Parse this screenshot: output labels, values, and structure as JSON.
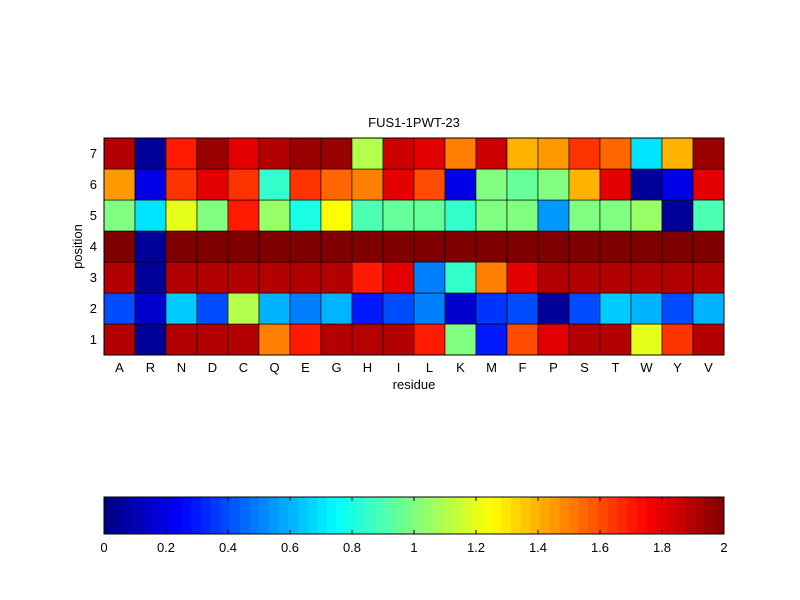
{
  "chart_data": {
    "type": "heatmap",
    "title": "FUS1-1PWT-23",
    "xlabel": "residue",
    "ylabel": "position",
    "x_categories": [
      "A",
      "R",
      "N",
      "D",
      "C",
      "Q",
      "E",
      "G",
      "H",
      "I",
      "L",
      "K",
      "M",
      "F",
      "P",
      "S",
      "T",
      "W",
      "Y",
      "V"
    ],
    "y_categories": [
      "1",
      "2",
      "3",
      "4",
      "5",
      "6",
      "7"
    ],
    "values": [
      [
        1.9,
        0.05,
        1.9,
        1.9,
        1.9,
        1.5,
        1.7,
        1.9,
        1.9,
        1.9,
        1.7,
        1.0,
        0.3,
        1.6,
        1.8,
        1.9,
        1.9,
        1.2,
        1.65,
        1.9
      ],
      [
        0.4,
        0.15,
        0.65,
        0.4,
        1.1,
        0.6,
        0.5,
        0.6,
        0.3,
        0.4,
        0.5,
        0.15,
        0.35,
        0.4,
        0.05,
        0.4,
        0.65,
        0.6,
        0.4,
        0.6
      ],
      [
        1.9,
        0.05,
        1.9,
        1.9,
        1.9,
        1.9,
        1.9,
        1.9,
        1.7,
        1.8,
        0.5,
        0.85,
        1.5,
        1.8,
        1.9,
        1.9,
        1.9,
        1.9,
        1.9,
        1.9
      ],
      [
        2.0,
        0.05,
        2.0,
        2.0,
        2.0,
        2.0,
        2.0,
        2.0,
        2.0,
        2.0,
        2.0,
        2.0,
        2.0,
        2.0,
        2.0,
        2.0,
        2.0,
        2.0,
        2.0,
        2.0
      ],
      [
        1.0,
        0.7,
        1.2,
        1.0,
        1.7,
        1.05,
        0.8,
        1.25,
        0.9,
        0.95,
        0.95,
        0.85,
        1.0,
        1.0,
        0.55,
        1.0,
        1.0,
        1.05,
        0.05,
        0.9
      ],
      [
        1.45,
        0.2,
        1.65,
        1.8,
        1.65,
        0.85,
        1.65,
        1.55,
        1.5,
        1.8,
        1.6,
        0.2,
        1.0,
        0.95,
        1.0,
        1.4,
        1.8,
        0.05,
        0.2,
        1.8
      ],
      [
        1.9,
        0.05,
        1.7,
        1.95,
        1.8,
        1.9,
        1.95,
        1.95,
        1.1,
        1.85,
        1.8,
        1.5,
        1.85,
        1.4,
        1.45,
        1.65,
        1.55,
        0.7,
        1.4,
        1.95
      ]
    ],
    "color_scale": "jet",
    "vmin": 0,
    "vmax": 2,
    "colorbar": {
      "placement": "bottom",
      "ticks": [
        "0",
        "0.2",
        "0.4",
        "0.6",
        "0.8",
        "1",
        "1.2",
        "1.4",
        "1.6",
        "1.8",
        "2"
      ]
    }
  }
}
